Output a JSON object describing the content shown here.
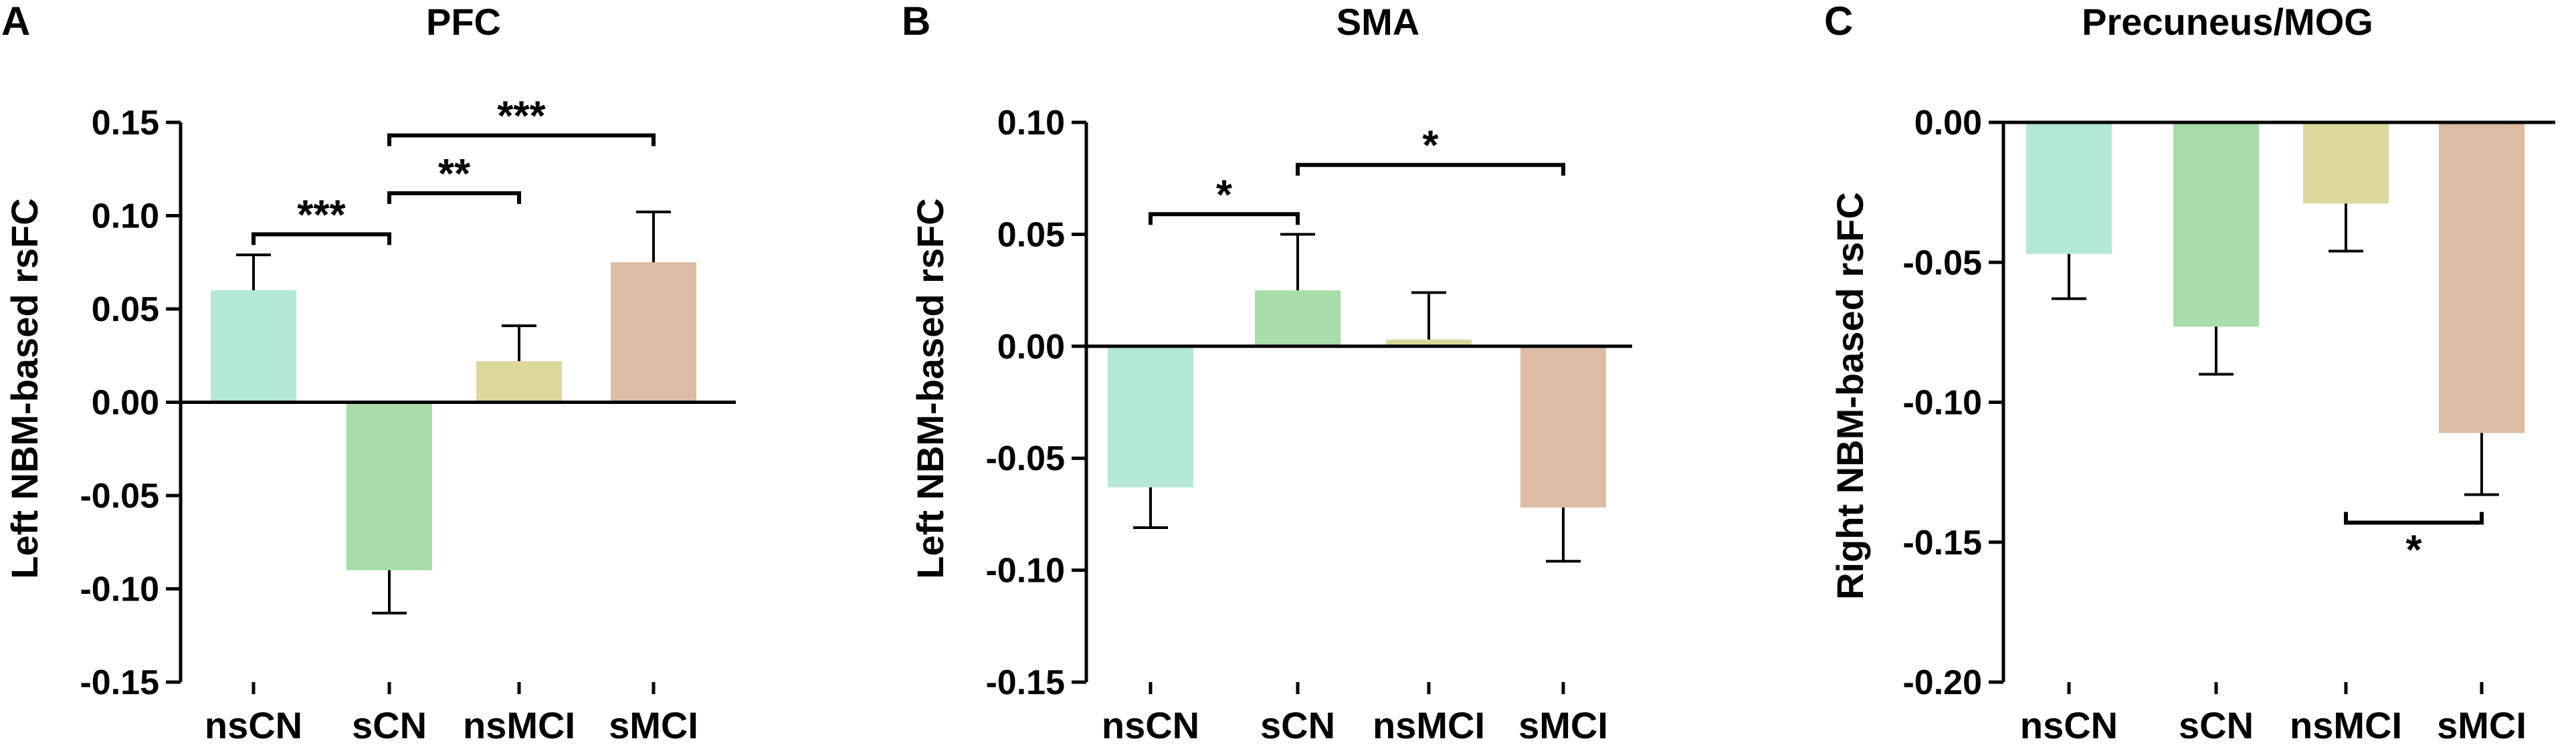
{
  "colors": {
    "nsCN": "#b3e8d8",
    "sCN": "#a8dca8",
    "nsMCI": "#dcd89c",
    "sMCI": "#dcbca4",
    "axis": "#000000"
  },
  "chart_data": [
    {
      "type": "bar",
      "panel_letter": "A",
      "title": "PFC",
      "ylabel": "Left NBM-based rsFC",
      "xlabel": "",
      "categories": [
        "nsCN",
        "sCN",
        "nsMCI",
        "sMCI"
      ],
      "values": [
        0.06,
        -0.09,
        0.022,
        0.075
      ],
      "errors": [
        0.019,
        0.023,
        0.019,
        0.027
      ],
      "ylim": [
        -0.15,
        0.15
      ],
      "yticks": [
        0.15,
        0.1,
        0.05,
        0.0,
        -0.05,
        -0.1,
        -0.15
      ],
      "ytick_labels": [
        "0.15",
        "0.10",
        "0.05",
        "0.00",
        "-0.05",
        "-0.10",
        "-0.15"
      ],
      "significance": [
        {
          "from": 0,
          "to": 1,
          "label": "***",
          "y": 0.09,
          "tick": "down"
        },
        {
          "from": 1,
          "to": 2,
          "label": "**",
          "y": 0.112,
          "tick": "down"
        },
        {
          "from": 1,
          "to": 3,
          "label": "***",
          "y": 0.143,
          "tick": "down"
        }
      ]
    },
    {
      "type": "bar",
      "panel_letter": "B",
      "title": "SMA",
      "ylabel": "Left NBM-based rsFC",
      "xlabel": "",
      "categories": [
        "nsCN",
        "sCN",
        "nsMCI",
        "sMCI"
      ],
      "values": [
        -0.063,
        0.025,
        0.003,
        -0.072
      ],
      "errors": [
        0.018,
        0.025,
        0.021,
        0.024
      ],
      "ylim": [
        -0.15,
        0.1
      ],
      "yticks": [
        0.1,
        0.05,
        0.0,
        -0.05,
        -0.1,
        -0.15
      ],
      "ytick_labels": [
        "0.10",
        "0.05",
        "0.00",
        "-0.05",
        "-0.10",
        "-0.15"
      ],
      "significance": [
        {
          "from": 0,
          "to": 1,
          "label": "*",
          "y": 0.059,
          "tick": "down"
        },
        {
          "from": 1,
          "to": 3,
          "label": "*",
          "y": 0.081,
          "tick": "down"
        }
      ]
    },
    {
      "type": "bar",
      "panel_letter": "C",
      "title": "Precuneus/MOG",
      "ylabel": "Right NBM-based rsFC",
      "xlabel": "",
      "categories": [
        "nsCN",
        "sCN",
        "nsMCI",
        "sMCI"
      ],
      "values": [
        -0.047,
        -0.073,
        -0.029,
        -0.111
      ],
      "errors": [
        0.016,
        0.017,
        0.017,
        0.022
      ],
      "ylim": [
        -0.2,
        0.0
      ],
      "yticks": [
        0.0,
        -0.05,
        -0.1,
        -0.15,
        -0.2
      ],
      "ytick_labels": [
        "0.00",
        "-0.05",
        "-0.10",
        "-0.15",
        "-0.20"
      ],
      "significance": [
        {
          "from": 2,
          "to": 3,
          "label": "*",
          "y": -0.143,
          "tick": "up"
        }
      ]
    }
  ]
}
